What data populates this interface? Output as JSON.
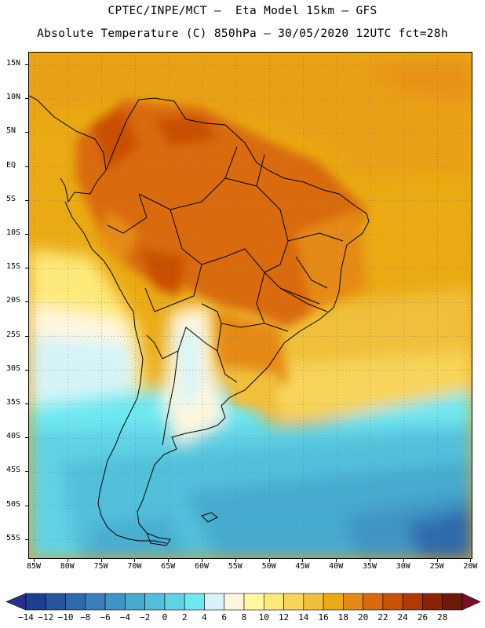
{
  "header": {
    "line1": "CPTEC/INPE/MCT –  Eta Model 15km – GFS",
    "line2": "Absolute Temperature (C) 850hPa – 30/05/2020 12UTC fct=28h"
  },
  "map": {
    "latitude_labels": [
      "15N",
      "10N",
      "5N",
      "EQ",
      "5S",
      "10S",
      "15S",
      "20S",
      "25S",
      "30S",
      "35S",
      "40S",
      "45S",
      "50S",
      "55S"
    ],
    "longitude_labels": [
      "85W",
      "80W",
      "75W",
      "70W",
      "65W",
      "60W",
      "55W",
      "50W",
      "45W",
      "40W",
      "35W",
      "30W",
      "25W",
      "20W"
    ]
  },
  "colorbar": {
    "labels": [
      "-14",
      "-12",
      "-10",
      "-8",
      "-6",
      "-4",
      "-2",
      "0",
      "2",
      "4",
      "6",
      "8",
      "10",
      "12",
      "14",
      "16",
      "18",
      "20",
      "22",
      "24",
      "26",
      "28"
    ],
    "colors": [
      "#1d3f8f",
      "#2755a0",
      "#2f6aad",
      "#3980ba",
      "#4095c6",
      "#47aacf",
      "#52c0db",
      "#60d3e6",
      "#6fe8f1",
      "#d6f4f8",
      "#fff6de",
      "#fff8a0",
      "#fde97a",
      "#f8d45a",
      "#f0bf3a",
      "#eaaa14",
      "#e58a14",
      "#d96a0a",
      "#c95005",
      "#b03a04",
      "#8c2404",
      "#6e1a0a"
    ],
    "low_arrow_color": "#2a2f8c",
    "high_arrow_color": "#7a0d28"
  }
}
